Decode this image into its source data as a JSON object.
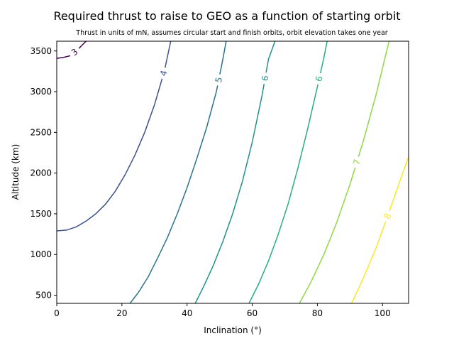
{
  "chart_data": {
    "type": "contour",
    "title": "Required thrust to raise to GEO as a function of starting orbit",
    "subtitle": "Thrust in units of mN, assumes circular start and finish orbits, orbit elevation takes one year",
    "xlabel": "Inclination (°)",
    "ylabel": "Altitude (km)",
    "xlim": [
      0,
      108
    ],
    "ylim": [
      400,
      3620
    ],
    "xticks": [
      0,
      20,
      40,
      60,
      80,
      100
    ],
    "yticks": [
      500,
      1000,
      1500,
      2000,
      2500,
      3000,
      3500
    ],
    "grid": false,
    "contours": [
      {
        "level_label": "3",
        "color": "#440154",
        "points": [
          [
            0,
            3410
          ],
          [
            2,
            3420
          ],
          [
            4,
            3440
          ],
          [
            6,
            3500
          ],
          [
            8,
            3580
          ],
          [
            9,
            3620
          ]
        ]
      },
      {
        "level_label": "4",
        "color": "#3b528b",
        "points": [
          [
            0,
            1290
          ],
          [
            3,
            1300
          ],
          [
            6,
            1340
          ],
          [
            9,
            1410
          ],
          [
            12,
            1500
          ],
          [
            15,
            1620
          ],
          [
            18,
            1780
          ],
          [
            21,
            1980
          ],
          [
            24,
            2220
          ],
          [
            27,
            2500
          ],
          [
            30,
            2840
          ],
          [
            33,
            3250
          ],
          [
            35,
            3620
          ]
        ]
      },
      {
        "level_label": "5",
        "color": "#2c728e",
        "points": [
          [
            22.5,
            400
          ],
          [
            25,
            530
          ],
          [
            28,
            720
          ],
          [
            31,
            960
          ],
          [
            34,
            1210
          ],
          [
            37,
            1500
          ],
          [
            40,
            1820
          ],
          [
            43,
            2180
          ],
          [
            46,
            2560
          ],
          [
            49,
            3000
          ],
          [
            51,
            3400
          ],
          [
            52,
            3620
          ]
        ]
      },
      {
        "level_label": "6",
        "color": "#21918c",
        "points": [
          [
            42.5,
            400
          ],
          [
            45,
            600
          ],
          [
            48,
            860
          ],
          [
            51,
            1160
          ],
          [
            54,
            1500
          ],
          [
            57,
            1900
          ],
          [
            60,
            2380
          ],
          [
            63,
            2950
          ],
          [
            65,
            3400
          ],
          [
            67,
            3620
          ]
        ]
      },
      {
        "level_label": "6",
        "color": "#28ae80",
        "points": [
          [
            59,
            400
          ],
          [
            62,
            640
          ],
          [
            65,
            920
          ],
          [
            68,
            1250
          ],
          [
            71,
            1620
          ],
          [
            74,
            2060
          ],
          [
            77,
            2540
          ],
          [
            80,
            3060
          ],
          [
            82,
            3420
          ],
          [
            83,
            3620
          ]
        ]
      },
      {
        "level_label": "7",
        "color": "#8fd744",
        "points": [
          [
            74.5,
            400
          ],
          [
            78,
            660
          ],
          [
            82,
            1000
          ],
          [
            86,
            1400
          ],
          [
            90,
            1860
          ],
          [
            94,
            2380
          ],
          [
            98,
            2960
          ],
          [
            102,
            3620
          ]
        ]
      },
      {
        "level_label": "8",
        "color": "#fde725",
        "points": [
          [
            90.5,
            400
          ],
          [
            94,
            700
          ],
          [
            98,
            1080
          ],
          [
            102,
            1520
          ],
          [
            106,
            1980
          ],
          [
            108,
            2200
          ]
        ]
      }
    ]
  }
}
